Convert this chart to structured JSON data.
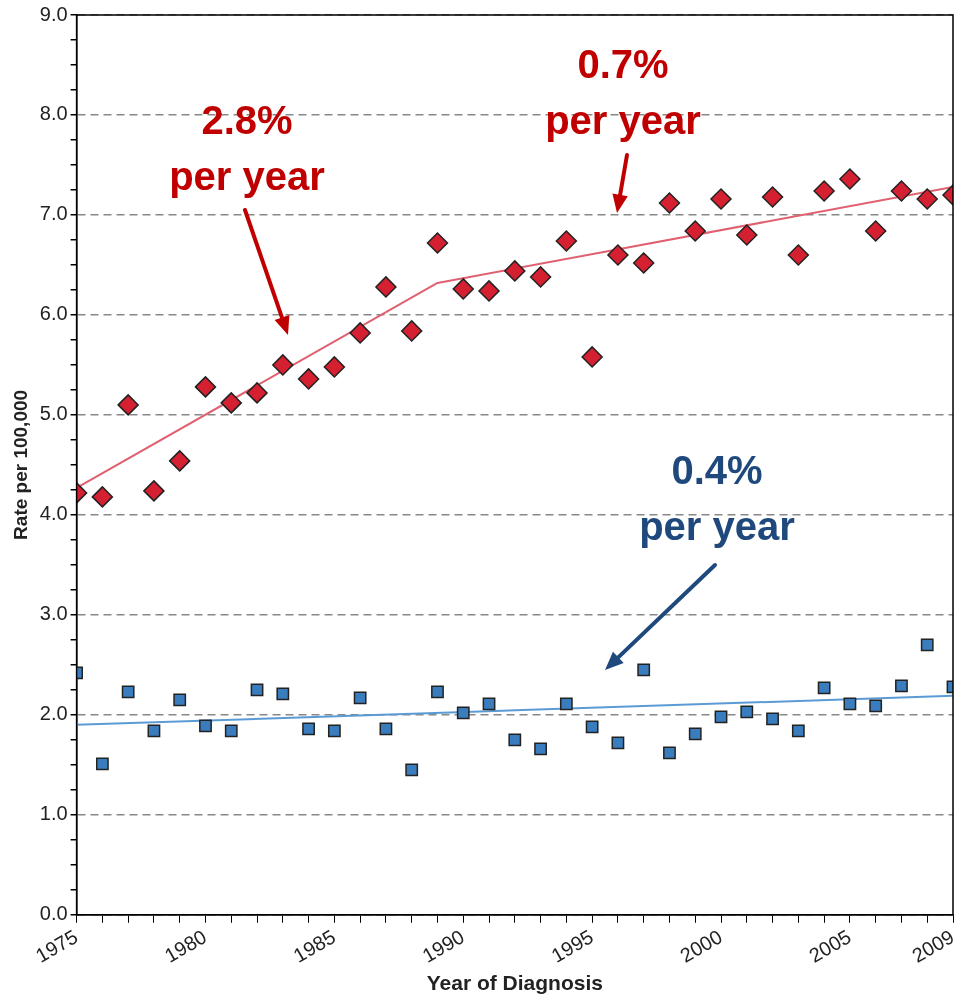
{
  "chart_data": {
    "type": "scatter",
    "xlabel": "Year of Diagnosis",
    "ylabel": "Rate per 100,000",
    "xlim": [
      1975,
      2009
    ],
    "xticks": [
      {
        "value": 1975,
        "label": "1975"
      },
      {
        "value": 1976,
        "label": null
      },
      {
        "value": 1977,
        "label": null
      },
      {
        "value": 1978,
        "label": null
      },
      {
        "value": 1979,
        "label": null
      },
      {
        "value": 1980,
        "label": "1980"
      },
      {
        "value": 1981,
        "label": null
      },
      {
        "value": 1982,
        "label": null
      },
      {
        "value": 1983,
        "label": null
      },
      {
        "value": 1984,
        "label": null
      },
      {
        "value": 1985,
        "label": "1985"
      },
      {
        "value": 1986,
        "label": null
      },
      {
        "value": 1987,
        "label": null
      },
      {
        "value": 1988,
        "label": null
      },
      {
        "value": 1989,
        "label": null
      },
      {
        "value": 1990,
        "label": "1990"
      },
      {
        "value": 1991,
        "label": null
      },
      {
        "value": 1992,
        "label": null
      },
      {
        "value": 1993,
        "label": null
      },
      {
        "value": 1994,
        "label": null
      },
      {
        "value": 1995,
        "label": "1995"
      },
      {
        "value": 1996,
        "label": null
      },
      {
        "value": 1997,
        "label": null
      },
      {
        "value": 1998,
        "label": null
      },
      {
        "value": 1999,
        "label": null
      },
      {
        "value": 2000,
        "label": "2000"
      },
      {
        "value": 2001,
        "label": null
      },
      {
        "value": 2002,
        "label": null
      },
      {
        "value": 2003,
        "label": null
      },
      {
        "value": 2004,
        "label": null
      },
      {
        "value": 2005,
        "label": "2005"
      },
      {
        "value": 2006,
        "label": null
      },
      {
        "value": 2007,
        "label": null
      },
      {
        "value": 2008,
        "label": null
      },
      {
        "value": 2009,
        "label": "2009"
      }
    ],
    "ylim": [
      0,
      9
    ],
    "yticks": [
      {
        "value": 0,
        "label": "0.0"
      },
      {
        "value": 0.25,
        "label": null
      },
      {
        "value": 0.5,
        "label": null
      },
      {
        "value": 0.75,
        "label": null
      },
      {
        "value": 1,
        "label": "1.0"
      },
      {
        "value": 1.25,
        "label": null
      },
      {
        "value": 1.5,
        "label": null
      },
      {
        "value": 1.75,
        "label": null
      },
      {
        "value": 2,
        "label": "2.0"
      },
      {
        "value": 2.25,
        "label": null
      },
      {
        "value": 2.5,
        "label": null
      },
      {
        "value": 2.75,
        "label": null
      },
      {
        "value": 3,
        "label": "3.0"
      },
      {
        "value": 3.25,
        "label": null
      },
      {
        "value": 3.5,
        "label": null
      },
      {
        "value": 3.75,
        "label": null
      },
      {
        "value": 4,
        "label": "4.0"
      },
      {
        "value": 4.25,
        "label": null
      },
      {
        "value": 4.5,
        "label": null
      },
      {
        "value": 4.75,
        "label": null
      },
      {
        "value": 5,
        "label": "5.0"
      },
      {
        "value": 5.25,
        "label": null
      },
      {
        "value": 5.5,
        "label": null
      },
      {
        "value": 5.75,
        "label": null
      },
      {
        "value": 6,
        "label": "6.0"
      },
      {
        "value": 6.25,
        "label": null
      },
      {
        "value": 6.5,
        "label": null
      },
      {
        "value": 6.75,
        "label": null
      },
      {
        "value": 7,
        "label": "7.0"
      },
      {
        "value": 7.25,
        "label": null
      },
      {
        "value": 7.5,
        "label": null
      },
      {
        "value": 7.75,
        "label": null
      },
      {
        "value": 8,
        "label": "8.0"
      },
      {
        "value": 8.25,
        "label": null
      },
      {
        "value": 8.5,
        "label": null
      },
      {
        "value": 8.75,
        "label": null
      },
      {
        "value": 9,
        "label": "9.0"
      }
    ],
    "grid": "y",
    "legend": false,
    "x": [
      1975,
      1976,
      1977,
      1978,
      1979,
      1980,
      1981,
      1982,
      1983,
      1984,
      1985,
      1986,
      1987,
      1988,
      1989,
      1990,
      1991,
      1992,
      1993,
      1994,
      1995,
      1996,
      1997,
      1998,
      1999,
      2000,
      2001,
      2002,
      2003,
      2004,
      2005,
      2006,
      2007,
      2008,
      2009
    ],
    "series": [
      {
        "type": "scatter",
        "marker": "diamond",
        "color": "#d42030",
        "values": [
          4.22,
          4.18,
          5.1,
          4.24,
          4.54,
          5.28,
          5.12,
          5.22,
          5.5,
          5.36,
          5.48,
          5.82,
          6.28,
          5.84,
          6.72,
          6.26,
          6.24,
          6.44,
          6.38,
          6.74,
          5.58,
          6.6,
          6.52,
          7.12,
          6.84,
          7.16,
          6.8,
          7.18,
          6.6,
          7.24,
          7.36,
          6.84,
          7.24,
          7.16,
          7.2
        ]
      },
      {
        "type": "line",
        "marker": "none",
        "color": "#e06070",
        "x": [
          1975,
          1989,
          2009
        ],
        "values": [
          4.27,
          6.32,
          7.28
        ]
      },
      {
        "type": "scatter",
        "marker": "square",
        "color": "#3a7dbf",
        "values": [
          2.42,
          1.51,
          2.23,
          1.84,
          2.15,
          1.89,
          1.84,
          2.25,
          2.21,
          1.86,
          1.84,
          2.17,
          1.86,
          1.45,
          2.23,
          2.02,
          2.11,
          1.75,
          1.66,
          2.11,
          1.88,
          1.72,
          2.45,
          1.62,
          1.81,
          1.98,
          2.03,
          1.96,
          1.84,
          2.27,
          2.11,
          2.09,
          2.29,
          2.7,
          2.28
        ]
      },
      {
        "type": "line",
        "marker": "none",
        "color": "#5b9bd5",
        "x": [
          1975,
          2009
        ],
        "values": [
          1.9,
          2.19
        ]
      }
    ],
    "annotations": [
      "2.8%\nper year",
      "0.7%\nper year",
      "0.4%\nper year"
    ]
  }
}
